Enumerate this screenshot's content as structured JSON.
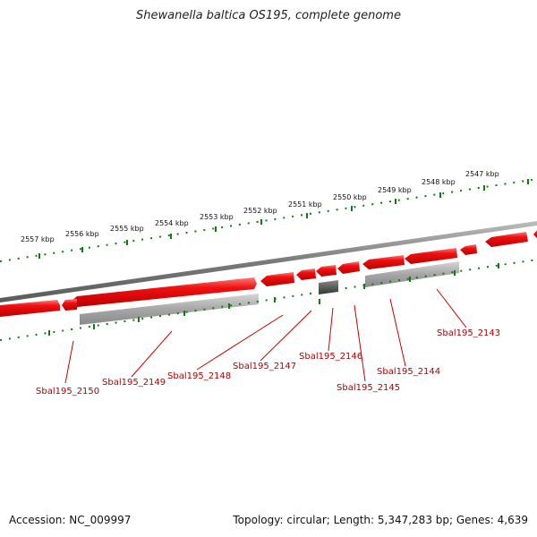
{
  "title": "Shewanella baltica OS195, complete genome",
  "ruler_labels": [
    "2557 kbp",
    "2556 kbp",
    "2555 kbp",
    "2554 kbp",
    "2553 kbp",
    "2552 kbp",
    "2551 kbp",
    "2550 kbp",
    "2549 kbp",
    "2548 kbp",
    "2547 kbp"
  ],
  "gene_labels": [
    "Sbal195_2150",
    "Sbal195_2149",
    "Sbal195_2148",
    "Sbal195_2147",
    "Sbal195_2146",
    "Sbal195_2145",
    "Sbal195_2144",
    "Sbal195_2143"
  ],
  "footer": {
    "accession": "Accession: NC_009997",
    "summary": "Topology: circular; Length: 5,347,283 bp; Genes: 4,639"
  },
  "colors": {
    "gene_red": "#e30000",
    "gene_red_light": "#ff6a6a",
    "gray_band": "#a8a8a8",
    "dark_gene": "#555555",
    "tick_green": "#117a11",
    "backbone": "#7a7a7a"
  }
}
